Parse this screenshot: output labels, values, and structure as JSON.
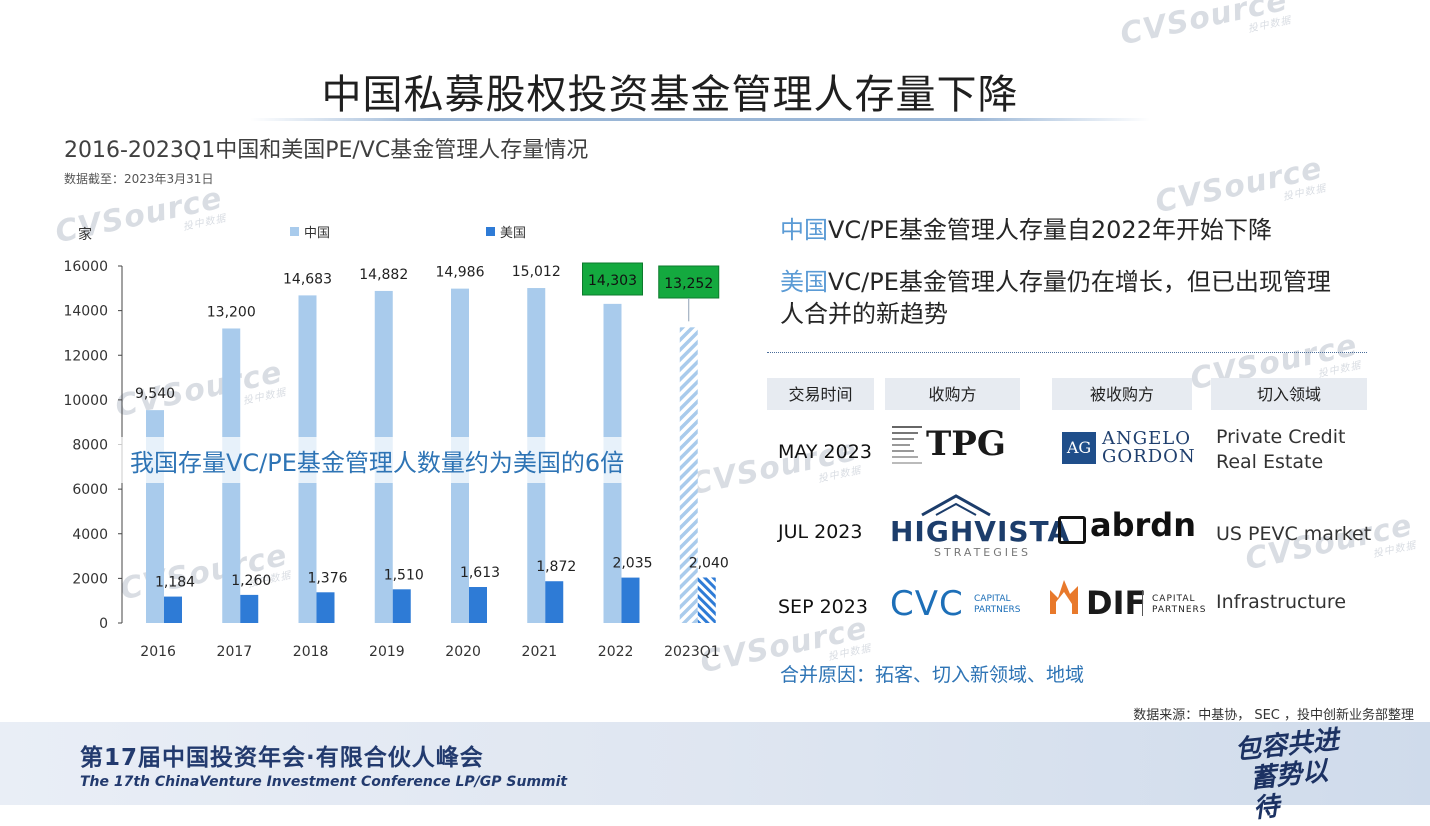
{
  "page": {
    "title": "中国私募股权投资基金管理人存量下降",
    "subtitle": "2016-2023Q1中国和美国PE/VC基金管理人存量情况",
    "data_date": "数据截至：2023年3月31日"
  },
  "watermark": {
    "main": "CVSource",
    "sub": "投中数据"
  },
  "colors": {
    "china": "#a9cbec",
    "us": "#2e7bd6",
    "highlight_green": "#14a93f",
    "accent_blue": "#5b9bd5",
    "text_blue": "#2e74b5"
  },
  "chart_data": {
    "type": "bar",
    "unit_label": "家",
    "categories": [
      "2016",
      "2017",
      "2018",
      "2019",
      "2020",
      "2021",
      "2022",
      "2023Q1"
    ],
    "series": [
      {
        "name": "中国",
        "values": [
          9540,
          13200,
          14683,
          14882,
          14986,
          15012,
          14303,
          13252
        ]
      },
      {
        "name": "美国",
        "values": [
          1184,
          1260,
          1376,
          1510,
          1613,
          1872,
          2035,
          2040
        ]
      }
    ],
    "data_labels": {
      "中国": [
        "9,540",
        "13,200",
        "14,683",
        "14,882",
        "14,986",
        "15,012",
        "14,303",
        "13,252"
      ],
      "美国": [
        "1,184",
        "1,260",
        "1,376",
        "1,510",
        "1,613",
        "1,872",
        "2,035",
        "2,040"
      ]
    },
    "yticks": [
      0,
      2000,
      4000,
      6000,
      8000,
      10000,
      12000,
      14000,
      16000
    ],
    "ylim": [
      0,
      16000
    ],
    "legend_position": "top",
    "highlighted_categories": [
      "2022",
      "2023Q1"
    ],
    "hatched_category": "2023Q1",
    "annotation": "我国存量VC/PE基金管理人数量约为美国的6倍"
  },
  "right": {
    "line1_hl": "中国",
    "line1_rest": "VC/PE基金管理人存量自2022年开始下降",
    "line2_hl": "美国",
    "line2_rest": "VC/PE基金管理人存量仍在增长，但已出现管理人合并的新趋势",
    "table_headers": [
      "交易时间",
      "收购方",
      "被收购方",
      "切入领域"
    ],
    "rows": [
      {
        "date": "MAY 2023",
        "acquirer": "TPG",
        "target_tag": "AG",
        "target_line1": "ANGELO",
        "target_line2": "GORDON",
        "field_lines": [
          "Private Credit",
          "Real Estate"
        ]
      },
      {
        "date": "JUL 2023",
        "acquirer": "HIGHVISTA",
        "acquirer_sub": "STRATEGIES",
        "target": "abrdn",
        "field_lines": [
          "US PEVC market"
        ]
      },
      {
        "date": "SEP 2023",
        "acquirer": "CVC",
        "acquirer_sub1": "CAPITAL",
        "acquirer_sub2": "PARTNERS",
        "target": "DIF",
        "target_sub1": "CAPITAL",
        "target_sub2": "PARTNERS",
        "field_lines": [
          "Infrastructure"
        ]
      }
    ],
    "reason": "合并原因：拓客、切入新领域、地域"
  },
  "source": "数据来源：中基协， SEC ，投中创新业务部整理",
  "footer": {
    "cn": "第17届中国投资年会·有限合伙人峰会",
    "en": "The 17th ChinaVenture Investment Conference LP/GP Summit",
    "slogan_1": "包容共进",
    "slogan_2": "蓄势以待"
  }
}
